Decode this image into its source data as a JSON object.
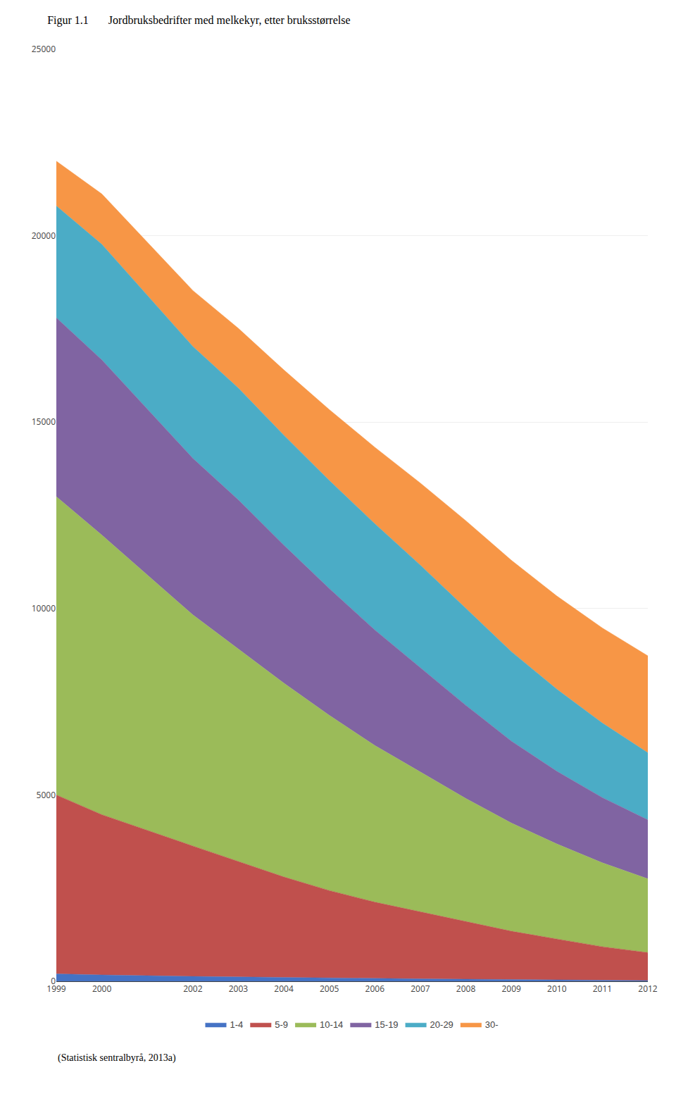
{
  "chart_data": {
    "type": "area",
    "stacked": true,
    "title": "Figur 1.1       Jordbruksbedrifter med melkekyr, etter bruksstørrelse",
    "x": [
      1999,
      2000,
      2002,
      2003,
      2004,
      2005,
      2006,
      2007,
      2008,
      2009,
      2010,
      2011,
      2012
    ],
    "series": [
      {
        "name": "1-4",
        "color": "#4472C4",
        "values": [
          200,
          170,
          130,
          115,
          100,
          85,
          75,
          65,
          55,
          45,
          35,
          28,
          20
        ]
      },
      {
        "name": "5-9",
        "color": "#C0504D",
        "values": [
          4800,
          4300,
          3500,
          3100,
          2700,
          2350,
          2050,
          1800,
          1550,
          1300,
          1100,
          900,
          750
        ]
      },
      {
        "name": "10-14",
        "color": "#9BBB59",
        "values": [
          8000,
          7500,
          6200,
          5700,
          5200,
          4700,
          4200,
          3750,
          3300,
          2900,
          2550,
          2250,
          1980
        ]
      },
      {
        "name": "15-19",
        "color": "#8064A2",
        "values": [
          4800,
          4700,
          4200,
          4000,
          3700,
          3400,
          3100,
          2800,
          2500,
          2200,
          1950,
          1750,
          1580
        ]
      },
      {
        "name": "20-29",
        "color": "#4BACC6",
        "values": [
          3000,
          3100,
          3000,
          3000,
          2950,
          2900,
          2850,
          2750,
          2600,
          2400,
          2200,
          2000,
          1800
        ]
      },
      {
        "name": "30-",
        "color": "#F79646",
        "values": [
          1200,
          1350,
          1500,
          1600,
          1750,
          1900,
          2050,
          2200,
          2350,
          2450,
          2500,
          2550,
          2600
        ]
      }
    ],
    "xlim": [
      1999,
      2012
    ],
    "xticks": [
      1999,
      2000,
      2002,
      2003,
      2004,
      2005,
      2006,
      2007,
      2008,
      2009,
      2010,
      2011,
      2012
    ],
    "ylim": [
      0,
      25000
    ],
    "yticks": [
      0,
      5000,
      10000,
      15000,
      20000,
      25000
    ],
    "grid": true,
    "legend": "bottom",
    "annotations": [
      "(Statistisk sentralbyrå, 2013a)"
    ]
  }
}
